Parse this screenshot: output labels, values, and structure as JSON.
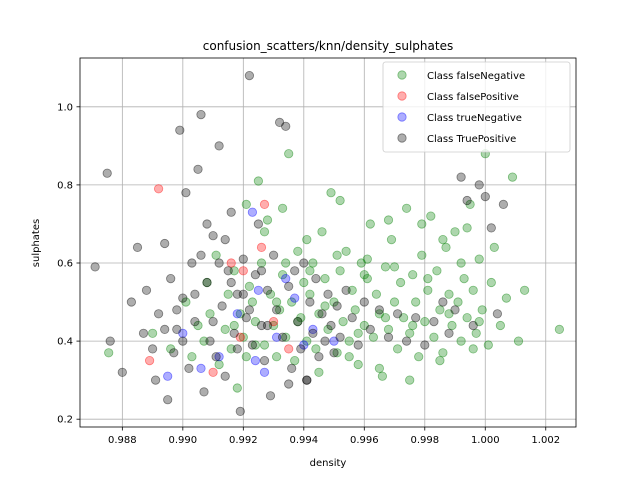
{
  "chart_data": {
    "type": "scatter",
    "title": "confusion_scatters/knn/density_sulphates",
    "xlabel": "density",
    "ylabel": "sulphates",
    "xlim": [
      0.9866,
      1.003
    ],
    "ylim": [
      0.18,
      1.125
    ],
    "x_ticks": [
      0.988,
      0.99,
      0.992,
      0.994,
      0.996,
      0.998,
      1.0,
      1.002
    ],
    "x_tick_labels": [
      "0.988",
      "0.990",
      "0.992",
      "0.994",
      "0.996",
      "0.998",
      "1.000",
      "1.002"
    ],
    "y_ticks": [
      0.2,
      0.4,
      0.6,
      0.8,
      1.0
    ],
    "y_tick_labels": [
      "0.2",
      "0.4",
      "0.6",
      "0.8",
      "1.0"
    ],
    "grid": true,
    "legend_position": "top-right",
    "series": [
      {
        "name": "Class falseNegative",
        "color": "#008000",
        "points": [
          [
            0.98755,
            0.37
          ],
          [
            0.989,
            0.42
          ],
          [
            0.9896,
            0.38
          ],
          [
            0.9901,
            0.5
          ],
          [
            0.9903,
            0.36
          ],
          [
            0.9905,
            0.44
          ],
          [
            0.9907,
            0.4
          ],
          [
            0.9908,
            0.55
          ],
          [
            0.9909,
            0.47
          ],
          [
            0.9911,
            0.62
          ],
          [
            0.9912,
            0.34
          ],
          [
            0.9914,
            0.43
          ],
          [
            0.9915,
            0.52
          ],
          [
            0.9916,
            0.38
          ],
          [
            0.9917,
            0.58
          ],
          [
            0.9918,
            0.28
          ],
          [
            0.9919,
            0.47
          ],
          [
            0.992,
            0.41
          ],
          [
            0.9921,
            0.36
          ],
          [
            0.9922,
            0.54
          ],
          [
            0.9923,
            0.5
          ],
          [
            0.9924,
            0.45
          ],
          [
            0.9925,
            0.81
          ],
          [
            0.9926,
            0.6
          ],
          [
            0.9927,
            0.39
          ],
          [
            0.9928,
            0.71
          ],
          [
            0.9929,
            0.52
          ],
          [
            0.993,
            0.44
          ],
          [
            0.9931,
            0.36
          ],
          [
            0.9932,
            0.48
          ],
          [
            0.9933,
            0.57
          ],
          [
            0.9934,
            0.41
          ],
          [
            0.9935,
            0.88
          ],
          [
            0.9936,
            0.5
          ],
          [
            0.9937,
            0.35
          ],
          [
            0.9938,
            0.63
          ],
          [
            0.9939,
            0.46
          ],
          [
            0.994,
            0.55
          ],
          [
            0.9941,
            0.4
          ],
          [
            0.9942,
            0.52
          ],
          [
            0.9943,
            0.6
          ],
          [
            0.9944,
            0.38
          ],
          [
            0.9945,
            0.47
          ],
          [
            0.9946,
            0.68
          ],
          [
            0.9947,
            0.56
          ],
          [
            0.9948,
            0.43
          ],
          [
            0.9949,
            0.78
          ],
          [
            0.995,
            0.5
          ],
          [
            0.9951,
            0.37
          ],
          [
            0.9952,
            0.58
          ],
          [
            0.9953,
            0.45
          ],
          [
            0.9954,
            0.63
          ],
          [
            0.9955,
            0.4
          ],
          [
            0.9956,
            0.53
          ],
          [
            0.9957,
            0.48
          ],
          [
            0.9958,
            0.34
          ],
          [
            0.9959,
            0.6
          ],
          [
            0.996,
            0.44
          ],
          [
            0.9961,
            0.56
          ],
          [
            0.9962,
            0.7
          ],
          [
            0.9963,
            0.41
          ],
          [
            0.9964,
            0.52
          ],
          [
            0.9965,
            0.47
          ],
          [
            0.9966,
            0.31
          ],
          [
            0.9967,
            0.59
          ],
          [
            0.9968,
            0.43
          ],
          [
            0.9969,
            0.66
          ],
          [
            0.997,
            0.5
          ],
          [
            0.9971,
            0.38
          ],
          [
            0.9972,
            0.55
          ],
          [
            0.9973,
            0.46
          ],
          [
            0.9974,
            0.74
          ],
          [
            0.9975,
            0.42
          ],
          [
            0.9976,
            0.57
          ],
          [
            0.9977,
            0.5
          ],
          [
            0.9978,
            0.36
          ],
          [
            0.9979,
            0.62
          ],
          [
            0.998,
            0.45
          ],
          [
            0.9981,
            0.53
          ],
          [
            0.9982,
            0.72
          ],
          [
            0.9983,
            0.41
          ],
          [
            0.9984,
            0.58
          ],
          [
            0.9985,
            0.48
          ],
          [
            0.9986,
            0.37
          ],
          [
            0.9987,
            0.64
          ],
          [
            0.9988,
            0.52
          ],
          [
            0.9989,
            0.44
          ],
          [
            0.999,
            0.68
          ],
          [
            0.9991,
            0.5
          ],
          [
            0.9992,
            0.4
          ],
          [
            0.9993,
            0.56
          ],
          [
            0.9994,
            0.46
          ],
          [
            0.9995,
            0.75
          ],
          [
            0.9996,
            0.53
          ],
          [
            0.9997,
            0.42
          ],
          [
            0.9998,
            0.61
          ],
          [
            0.9999,
            0.48
          ],
          [
            1.0,
            0.88
          ],
          [
            1.0001,
            0.39
          ],
          [
            1.0002,
            0.55
          ],
          [
            1.0003,
            0.64
          ],
          [
            1.0005,
            0.44
          ],
          [
            1.0007,
            0.51
          ],
          [
            1.0009,
            0.82
          ],
          [
            1.0011,
            0.4
          ],
          [
            1.0013,
            0.53
          ],
          [
            1.00245,
            0.43
          ],
          [
            0.9921,
            0.75
          ],
          [
            0.9927,
            0.68
          ],
          [
            0.9933,
            0.74
          ],
          [
            0.9941,
            0.66
          ],
          [
            0.9952,
            0.76
          ],
          [
            0.9961,
            0.61
          ],
          [
            0.9968,
            0.71
          ],
          [
            0.9979,
            0.7
          ],
          [
            0.9986,
            0.66
          ],
          [
            0.9994,
            0.69
          ],
          [
            0.9945,
            0.32
          ],
          [
            0.9955,
            0.36
          ],
          [
            0.9965,
            0.33
          ],
          [
            0.9975,
            0.3
          ],
          [
            0.9985,
            0.35
          ],
          [
            0.9996,
            0.38
          ],
          [
            0.9917,
            0.44
          ],
          [
            0.9924,
            0.39
          ],
          [
            0.9931,
            0.5
          ],
          [
            0.9938,
            0.45
          ],
          [
            0.9947,
            0.49
          ],
          [
            0.9958,
            0.42
          ],
          [
            0.9967,
            0.46
          ],
          [
            0.9976,
            0.44
          ],
          [
            0.9988,
            0.47
          ],
          [
            0.9998,
            0.45
          ],
          [
            0.9934,
            0.6
          ],
          [
            0.9942,
            0.58
          ],
          [
            0.9951,
            0.62
          ],
          [
            0.996,
            0.57
          ],
          [
            0.997,
            0.59
          ],
          [
            0.9981,
            0.56
          ],
          [
            0.9992,
            0.6
          ]
        ]
      },
      {
        "name": "Class falsePositive",
        "color": "#ff0000",
        "points": [
          [
            0.9889,
            0.35
          ],
          [
            0.9892,
            0.79
          ],
          [
            0.991,
            0.32
          ],
          [
            0.9916,
            0.6
          ],
          [
            0.992,
            0.58
          ],
          [
            0.9926,
            0.64
          ],
          [
            0.9927,
            0.75
          ],
          [
            0.993,
            0.45
          ],
          [
            0.9919,
            0.41
          ],
          [
            0.9935,
            0.38
          ]
        ]
      },
      {
        "name": "Class trueNegative",
        "color": "#0000ff",
        "points": [
          [
            0.9895,
            0.31
          ],
          [
            0.99,
            0.42
          ],
          [
            0.9906,
            0.33
          ],
          [
            0.9912,
            0.36
          ],
          [
            0.9918,
            0.47
          ],
          [
            0.9923,
            0.73
          ],
          [
            0.9924,
            0.35
          ],
          [
            0.9925,
            0.53
          ],
          [
            0.9927,
            0.32
          ],
          [
            0.9931,
            0.41
          ],
          [
            0.9934,
            0.56
          ],
          [
            0.9937,
            0.51
          ],
          [
            0.994,
            0.39
          ],
          [
            0.9943,
            0.43
          ],
          [
            0.995,
            0.4
          ]
        ]
      },
      {
        "name": "Class TruePositive",
        "color": "#000000",
        "points": [
          [
            0.9871,
            0.59
          ],
          [
            0.9875,
            0.83
          ],
          [
            0.9876,
            0.4
          ],
          [
            0.988,
            0.32
          ],
          [
            0.9883,
            0.5
          ],
          [
            0.9885,
            0.64
          ],
          [
            0.9887,
            0.42
          ],
          [
            0.9888,
            0.53
          ],
          [
            0.989,
            0.38
          ],
          [
            0.9891,
            0.3
          ],
          [
            0.9892,
            0.47
          ],
          [
            0.9894,
            0.65
          ],
          [
            0.9895,
            0.25
          ],
          [
            0.9896,
            0.56
          ],
          [
            0.9897,
            0.37
          ],
          [
            0.9898,
            0.43
          ],
          [
            0.9899,
            0.94
          ],
          [
            0.99,
            0.51
          ],
          [
            0.9901,
            0.78
          ],
          [
            0.9902,
            0.33
          ],
          [
            0.9903,
            0.6
          ],
          [
            0.9904,
            0.45
          ],
          [
            0.9905,
            0.84
          ],
          [
            0.9906,
            0.98
          ],
          [
            0.9907,
            0.27
          ],
          [
            0.9908,
            0.55
          ],
          [
            0.9909,
            0.4
          ],
          [
            0.991,
            0.67
          ],
          [
            0.9911,
            0.36
          ],
          [
            0.9912,
            0.9
          ],
          [
            0.9913,
            0.49
          ],
          [
            0.9914,
            0.31
          ],
          [
            0.9915,
            0.58
          ],
          [
            0.9916,
            0.73
          ],
          [
            0.9917,
            0.42
          ],
          [
            0.9918,
            0.52
          ],
          [
            0.9919,
            0.22
          ],
          [
            0.992,
            0.61
          ],
          [
            0.9921,
            0.46
          ],
          [
            0.9922,
            1.08
          ],
          [
            0.9923,
            0.39
          ],
          [
            0.9924,
            0.57
          ],
          [
            0.9925,
            0.7
          ],
          [
            0.9926,
            0.44
          ],
          [
            0.9927,
            0.35
          ],
          [
            0.9928,
            0.53
          ],
          [
            0.9929,
            0.26
          ],
          [
            0.993,
            0.62
          ],
          [
            0.9931,
            0.48
          ],
          [
            0.9932,
            0.96
          ],
          [
            0.9933,
            0.41
          ],
          [
            0.9934,
            0.95
          ],
          [
            0.9935,
            0.54
          ],
          [
            0.9936,
            0.33
          ],
          [
            0.9937,
            0.58
          ],
          [
            0.9938,
            0.45
          ],
          [
            0.9939,
            0.38
          ],
          [
            0.994,
            0.6
          ],
          [
            0.9941,
            0.3
          ],
          [
            0.9942,
            0.5
          ],
          [
            0.9943,
            0.42
          ],
          [
            0.9944,
            0.56
          ],
          [
            0.9945,
            0.36
          ],
          [
            0.9946,
            0.47
          ],
          [
            0.9947,
            0.4
          ],
          [
            0.9948,
            0.52
          ],
          [
            0.9949,
            0.44
          ],
          [
            0.995,
            0.37
          ],
          [
            0.9951,
            0.49
          ],
          [
            0.9952,
            0.41
          ],
          [
            0.9954,
            0.53
          ],
          [
            0.9956,
            0.46
          ],
          [
            0.9958,
            0.39
          ],
          [
            0.996,
            0.5
          ],
          [
            0.9962,
            0.43
          ],
          [
            0.9965,
            0.48
          ],
          [
            0.9968,
            0.41
          ],
          [
            0.9971,
            0.47
          ],
          [
            0.9974,
            0.4
          ],
          [
            0.9977,
            0.46
          ],
          [
            0.998,
            0.39
          ],
          [
            0.9983,
            0.45
          ],
          [
            0.9986,
            0.5
          ],
          [
            0.9988,
            0.42
          ],
          [
            0.999,
            0.48
          ],
          [
            0.9992,
            0.82
          ],
          [
            0.9994,
            0.76
          ],
          [
            0.9996,
            0.44
          ],
          [
            0.9998,
            0.8
          ],
          [
            1.0,
            0.77
          ],
          [
            1.0002,
            0.69
          ],
          [
            1.0004,
            0.47
          ],
          [
            1.0006,
            0.75
          ],
          [
            0.9941,
            0.3
          ],
          [
            0.9935,
            0.29
          ],
          [
            0.9912,
            0.6
          ],
          [
            0.9908,
            0.7
          ],
          [
            0.9914,
            0.66
          ],
          [
            0.9906,
            0.62
          ],
          [
            0.9916,
            0.55
          ],
          [
            0.9898,
            0.48
          ],
          [
            0.9904,
            0.52
          ],
          [
            0.991,
            0.45
          ],
          [
            0.9918,
            0.38
          ],
          [
            0.99,
            0.4
          ],
          [
            0.9894,
            0.43
          ],
          [
            0.9922,
            0.48
          ],
          [
            0.9928,
            0.44
          ],
          [
            0.9926,
            0.58
          ],
          [
            0.992,
            0.52
          ]
        ]
      }
    ]
  }
}
